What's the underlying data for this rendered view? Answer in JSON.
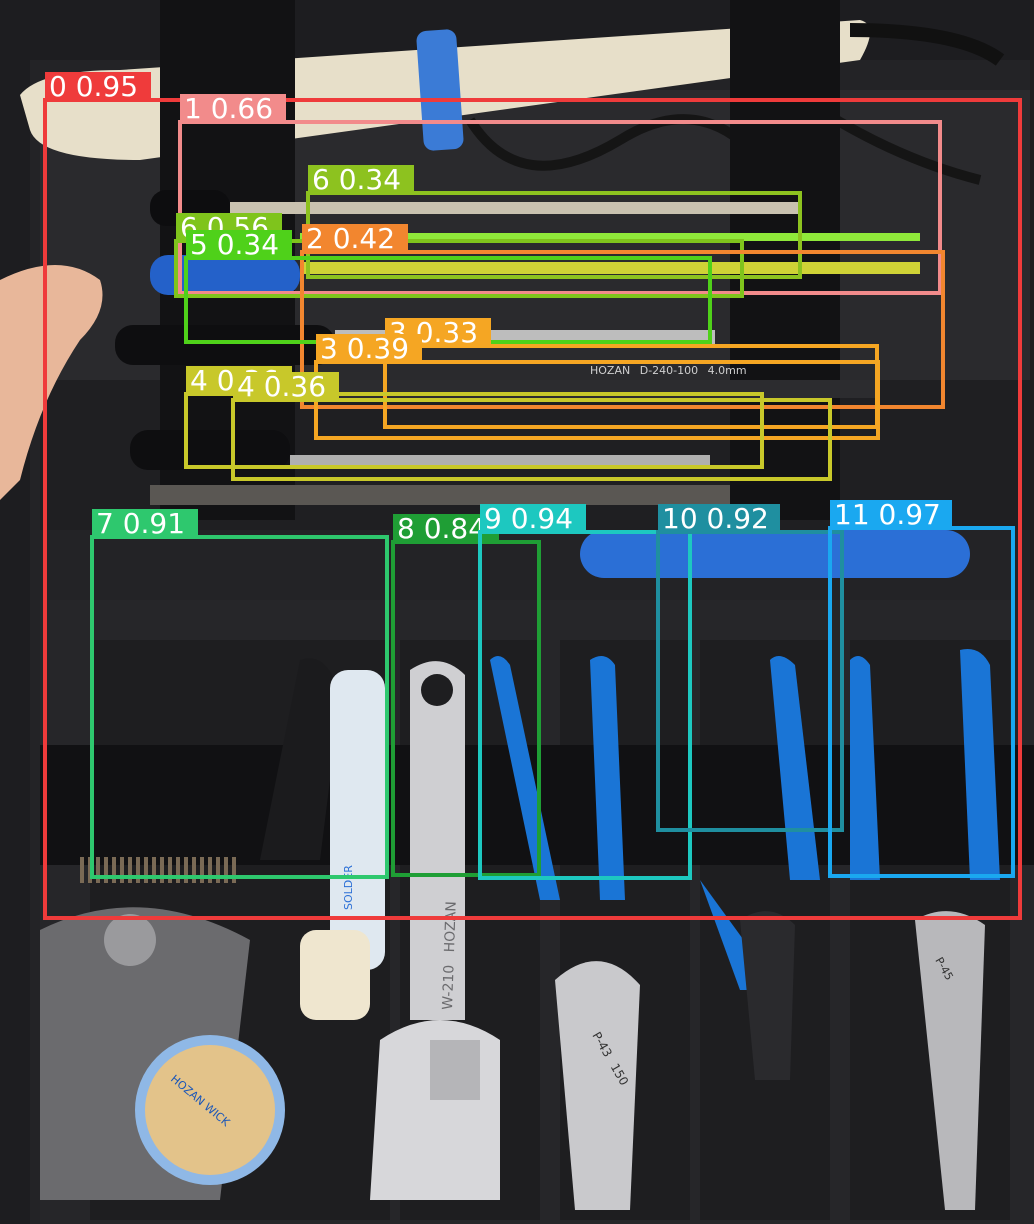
{
  "image": {
    "subject": "tool case with soldering iron, screwdrivers, wire strippers, solder tube, adjustable wrench and pliers",
    "printed_text": [
      "HOZAN",
      "D-240-100",
      "4.0mm",
      "W-210",
      "P-43",
      "150",
      "P-45",
      "SOLDER",
      "HOZAN WICK"
    ]
  },
  "detections": [
    {
      "id": "0",
      "score": "0.95",
      "color": "#ef3b3b"
    },
    {
      "id": "1",
      "score": "0.66",
      "color": "#f28b8b"
    },
    {
      "id": "6",
      "score": "0.34",
      "color": "#8dc21f"
    },
    {
      "id": "6",
      "score": "0.56",
      "color": "#7fc41c"
    },
    {
      "id": "2",
      "score": "0.42",
      "color": "#f2862f"
    },
    {
      "id": "5",
      "score": "0.34",
      "color": "#4fd11a"
    },
    {
      "id": "3",
      "score": "0.33",
      "color": "#f5a623"
    },
    {
      "id": "3",
      "score": "0.39",
      "color": "#f5a623"
    },
    {
      "id": "4",
      "score": "0.36",
      "color": "#c8c82a"
    },
    {
      "id": "4",
      "score": "0.36",
      "color": "#c8c82a"
    },
    {
      "id": "7",
      "score": "0.91",
      "color": "#2ec86e"
    },
    {
      "id": "8",
      "score": "0.84",
      "color": "#1f9e35"
    },
    {
      "id": "9",
      "score": "0.94",
      "color": "#1dc8c0"
    },
    {
      "id": "10",
      "score": "0.92",
      "color": "#1f8fa0"
    },
    {
      "id": "11",
      "score": "0.97",
      "color": "#1aa8f0"
    }
  ]
}
